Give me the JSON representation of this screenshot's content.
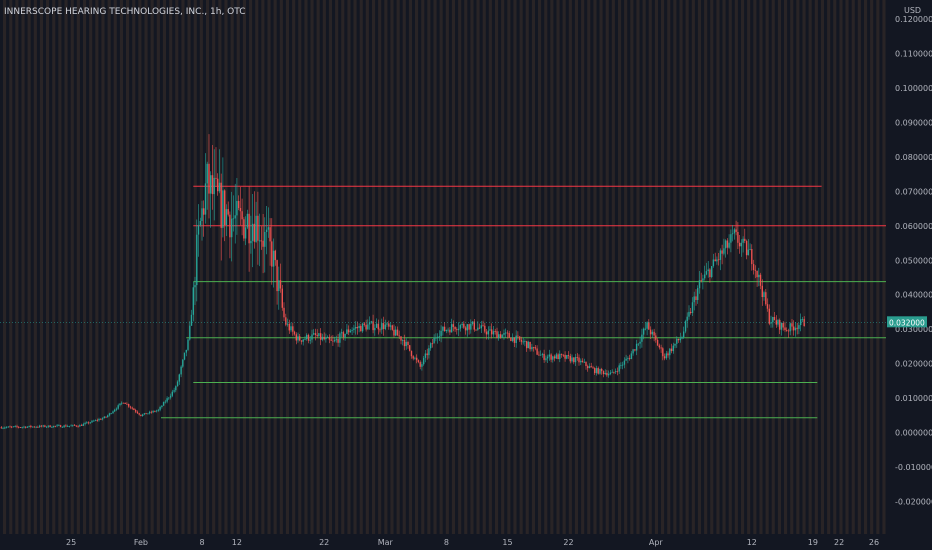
{
  "header": {
    "symbol_title": "INNERSCOPE HEARING TECHNOLOGIES, INC., 1h, OTC"
  },
  "axis": {
    "currency": "USD",
    "current_price_label": "0.032000"
  },
  "colors": {
    "background": "#131722",
    "up": "#26a69a",
    "down": "#ef5350",
    "green_line": "#4caf50",
    "red_line": "#f23645",
    "session_band": "#4e3a2c",
    "price_tag": "#2a9d8f"
  },
  "chart_data": {
    "type": "candlestick",
    "title": "INNERSCOPE HEARING TECHNOLOGIES, INC., 1h, OTC",
    "ylabel": "USD",
    "ylim": [
      -0.025,
      0.125
    ],
    "y_ticks": [
      0.12,
      0.11,
      0.1,
      0.09,
      0.08,
      0.07,
      0.06,
      0.05,
      0.04,
      0.03,
      0.02,
      0.01,
      0.0,
      -0.01,
      -0.02
    ],
    "y_tick_labels": [
      "0.120000",
      "0.110000",
      "0.100000",
      "0.090000",
      "0.080000",
      "0.070000",
      "0.060000",
      "0.050000",
      "0.040000",
      "0.030000",
      "0.020000",
      "0.010000",
      "0.000000",
      "-0.010000",
      "-0.020000"
    ],
    "x_ticks": [
      {
        "label": "25",
        "day": -7
      },
      {
        "label": "Feb",
        "day": 1
      },
      {
        "label": "8",
        "day": 8
      },
      {
        "label": "12",
        "day": 12
      },
      {
        "label": "22",
        "day": 22
      },
      {
        "label": "Mar",
        "day": 29
      },
      {
        "label": "8",
        "day": 36
      },
      {
        "label": "15",
        "day": 43
      },
      {
        "label": "22",
        "day": 50
      },
      {
        "label": "Apr",
        "day": 60
      },
      {
        "label": "12",
        "day": 71
      },
      {
        "label": "19",
        "day": 78
      },
      {
        "label": "22",
        "day": 81
      },
      {
        "label": "26",
        "day": 85
      }
    ],
    "xlim_days": [
      -15,
      88
    ],
    "last_price": 0.032,
    "price_path": [
      [
        -15,
        0.0015
      ],
      [
        -6,
        0.002
      ],
      [
        -3,
        0.0045
      ],
      [
        -1,
        0.009
      ],
      [
        1,
        0.005
      ],
      [
        3,
        0.0065
      ],
      [
        5,
        0.013
      ],
      [
        6.5,
        0.027
      ],
      [
        7.5,
        0.055
      ],
      [
        8.5,
        0.072
      ],
      [
        10,
        0.066
      ],
      [
        12,
        0.061
      ],
      [
        14,
        0.062
      ],
      [
        16,
        0.052
      ],
      [
        17.5,
        0.032
      ],
      [
        19,
        0.027
      ],
      [
        21,
        0.028
      ],
      [
        23,
        0.026
      ],
      [
        25,
        0.03
      ],
      [
        27,
        0.031
      ],
      [
        29,
        0.031
      ],
      [
        31,
        0.027
      ],
      [
        33,
        0.019
      ],
      [
        35,
        0.029
      ],
      [
        37,
        0.031
      ],
      [
        39,
        0.031
      ],
      [
        41,
        0.029
      ],
      [
        43,
        0.028
      ],
      [
        45,
        0.026
      ],
      [
        47,
        0.022
      ],
      [
        49,
        0.022
      ],
      [
        51,
        0.021
      ],
      [
        53,
        0.018
      ],
      [
        55,
        0.017
      ],
      [
        57,
        0.022
      ],
      [
        59,
        0.031
      ],
      [
        61,
        0.022
      ],
      [
        63,
        0.028
      ],
      [
        65,
        0.043
      ],
      [
        67,
        0.05
      ],
      [
        69,
        0.057
      ],
      [
        71,
        0.051
      ],
      [
        72,
        0.043
      ],
      [
        73,
        0.033
      ],
      [
        75,
        0.03
      ],
      [
        77,
        0.032
      ]
    ],
    "horizontal_levels": [
      {
        "price": 0.0715,
        "color": "red",
        "from_day": 7,
        "to_day": 79
      },
      {
        "price": 0.06,
        "color": "red",
        "from_day": 7,
        "to_day": 88
      },
      {
        "price": 0.0438,
        "color": "green",
        "from_day": 7,
        "to_day": 88
      },
      {
        "price": 0.0275,
        "color": "green",
        "from_day": 6.2,
        "to_day": 88
      },
      {
        "price": 0.0145,
        "color": "green",
        "from_day": 7,
        "to_day": 78.5
      },
      {
        "price": 0.0043,
        "color": "green",
        "from_day": 3.3,
        "to_day": 78.5
      }
    ]
  }
}
